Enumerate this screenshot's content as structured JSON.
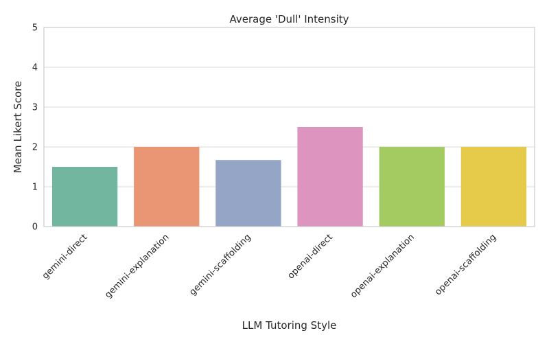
{
  "chart_data": {
    "type": "bar",
    "title": "Average 'Dull' Intensity",
    "xlabel": "LLM Tutoring Style",
    "ylabel": "Mean Likert Score",
    "ylim": [
      0,
      5
    ],
    "yticks": [
      0,
      1,
      2,
      3,
      4,
      5
    ],
    "categories": [
      "gemini-direct",
      "gemini-explanation",
      "gemini-scaffolding",
      "openai-direct",
      "openai-explanation",
      "openai-scaffolding"
    ],
    "values": [
      1.5,
      2.0,
      1.67,
      2.5,
      2.0,
      2.0
    ],
    "colors": [
      "#73b6a0",
      "#ea9674",
      "#95a5c6",
      "#dd94bf",
      "#a3cb62",
      "#e6cb4a"
    ],
    "grid": "horizontal",
    "legend": "none"
  }
}
